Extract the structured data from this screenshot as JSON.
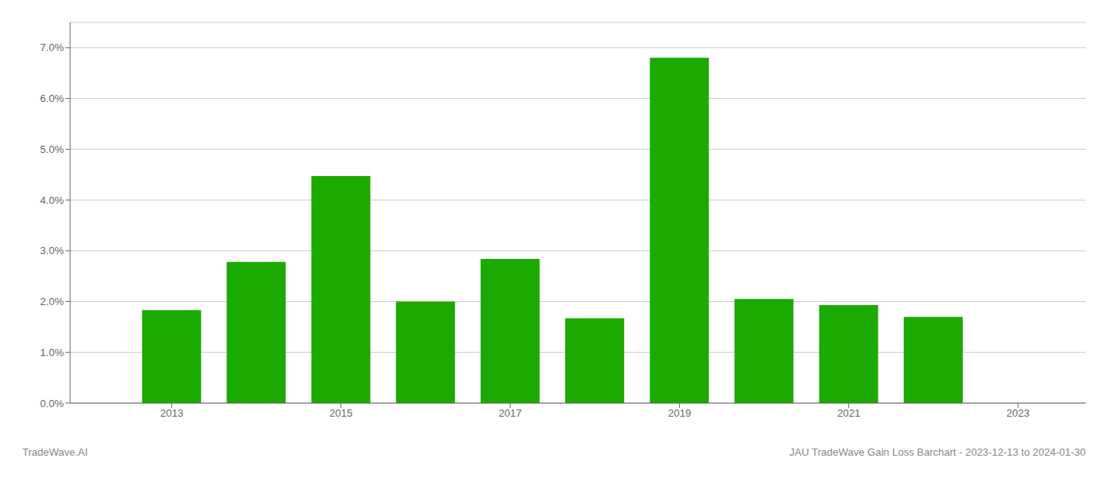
{
  "chart_data": {
    "type": "bar",
    "x": [
      2013,
      2014,
      2015,
      2016,
      2017,
      2018,
      2019,
      2020,
      2021,
      2022
    ],
    "values": [
      0.0183,
      0.0278,
      0.0447,
      0.02,
      0.0284,
      0.0167,
      0.068,
      0.0205,
      0.0193,
      0.017
    ],
    "color": "#1aaa00",
    "xlim": [
      2011.8,
      2023.8
    ],
    "xticks": [
      2013,
      2015,
      2017,
      2019,
      2021,
      2023
    ],
    "ylim": [
      0,
      0.075
    ],
    "yticks": [
      {
        "value": 0.0,
        "label": "0.0%"
      },
      {
        "value": 0.01,
        "label": "1.0%"
      },
      {
        "value": 0.02,
        "label": "2.0%"
      },
      {
        "value": 0.03,
        "label": "3.0%"
      },
      {
        "value": 0.04,
        "label": "4.0%"
      },
      {
        "value": 0.05,
        "label": "5.0%"
      },
      {
        "value": 0.06,
        "label": "6.0%"
      },
      {
        "value": 0.07,
        "label": "7.0%"
      }
    ],
    "grid": "y",
    "annotations": [
      "TradeWave.AI",
      "JAU TradeWave Gain Loss Barchart - 2023-12-13 to 2024-01-30"
    ]
  }
}
